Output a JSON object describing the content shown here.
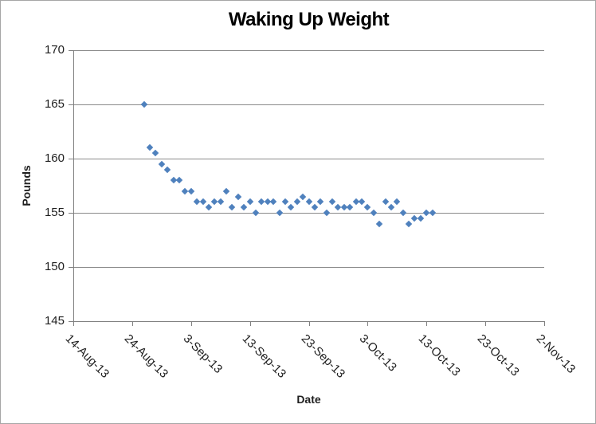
{
  "chart_data": {
    "type": "scatter",
    "title": "Waking Up Weight",
    "xlabel": "Date",
    "ylabel": "Pounds",
    "ylim": [
      145,
      170
    ],
    "y_ticks": [
      170,
      165,
      160,
      155,
      150,
      145
    ],
    "x_ticks": [
      {
        "label": "14-Aug-13",
        "day": 0
      },
      {
        "label": "24-Aug-13",
        "day": 10
      },
      {
        "label": "3-Sep-13",
        "day": 20
      },
      {
        "label": "13-Sep-13",
        "day": 30
      },
      {
        "label": "23-Sep-13",
        "day": 40
      },
      {
        "label": "3-Oct-13",
        "day": 50
      },
      {
        "label": "13-Oct-13",
        "day": 60
      },
      {
        "label": "23-Oct-13",
        "day": 70
      },
      {
        "label": "2-Nov-13",
        "day": 80
      }
    ],
    "x_day_range": [
      0,
      80
    ],
    "grid": "horizontal-only",
    "legend": "none",
    "marker": "diamond",
    "colors": {
      "marker": "#4F81BD",
      "gridline": "#8A8A8A",
      "axis": "#7F7F7F",
      "text": "#1F1F1F",
      "border": "#A6A6A6"
    },
    "points": [
      {
        "date": "26-Aug-13",
        "day": 12,
        "value": 165
      },
      {
        "date": "27-Aug-13",
        "day": 13,
        "value": 161
      },
      {
        "date": "28-Aug-13",
        "day": 14,
        "value": 160.5
      },
      {
        "date": "29-Aug-13",
        "day": 15,
        "value": 159.5
      },
      {
        "date": "30-Aug-13",
        "day": 16,
        "value": 159
      },
      {
        "date": "31-Aug-13",
        "day": 17,
        "value": 158
      },
      {
        "date": "1-Sep-13",
        "day": 18,
        "value": 158
      },
      {
        "date": "2-Sep-13",
        "day": 19,
        "value": 157
      },
      {
        "date": "3-Sep-13",
        "day": 20,
        "value": 157
      },
      {
        "date": "4-Sep-13",
        "day": 21,
        "value": 156
      },
      {
        "date": "5-Sep-13",
        "day": 22,
        "value": 156
      },
      {
        "date": "6-Sep-13",
        "day": 23,
        "value": 155.5
      },
      {
        "date": "7-Sep-13",
        "day": 24,
        "value": 156
      },
      {
        "date": "8-Sep-13",
        "day": 25,
        "value": 156
      },
      {
        "date": "9-Sep-13",
        "day": 26,
        "value": 157
      },
      {
        "date": "10-Sep-13",
        "day": 27,
        "value": 155.5
      },
      {
        "date": "11-Sep-13",
        "day": 28,
        "value": 156.5
      },
      {
        "date": "12-Sep-13",
        "day": 29,
        "value": 155.5
      },
      {
        "date": "13-Sep-13",
        "day": 30,
        "value": 156
      },
      {
        "date": "14-Sep-13",
        "day": 31,
        "value": 155
      },
      {
        "date": "15-Sep-13",
        "day": 32,
        "value": 156
      },
      {
        "date": "16-Sep-13",
        "day": 33,
        "value": 156
      },
      {
        "date": "17-Sep-13",
        "day": 34,
        "value": 156
      },
      {
        "date": "18-Sep-13",
        "day": 35,
        "value": 155
      },
      {
        "date": "19-Sep-13",
        "day": 36,
        "value": 156
      },
      {
        "date": "20-Sep-13",
        "day": 37,
        "value": 155.5
      },
      {
        "date": "21-Sep-13",
        "day": 38,
        "value": 156
      },
      {
        "date": "22-Sep-13",
        "day": 39,
        "value": 156.5
      },
      {
        "date": "23-Sep-13",
        "day": 40,
        "value": 156
      },
      {
        "date": "24-Sep-13",
        "day": 41,
        "value": 155.5
      },
      {
        "date": "25-Sep-13",
        "day": 42,
        "value": 156
      },
      {
        "date": "26-Sep-13",
        "day": 43,
        "value": 155
      },
      {
        "date": "27-Sep-13",
        "day": 44,
        "value": 156
      },
      {
        "date": "28-Sep-13",
        "day": 45,
        "value": 155.5
      },
      {
        "date": "29-Sep-13",
        "day": 46,
        "value": 155.5
      },
      {
        "date": "30-Sep-13",
        "day": 47,
        "value": 155.5
      },
      {
        "date": "1-Oct-13",
        "day": 48,
        "value": 156
      },
      {
        "date": "2-Oct-13",
        "day": 49,
        "value": 156
      },
      {
        "date": "3-Oct-13",
        "day": 50,
        "value": 155.5
      },
      {
        "date": "4-Oct-13",
        "day": 51,
        "value": 155
      },
      {
        "date": "5-Oct-13",
        "day": 52,
        "value": 154
      },
      {
        "date": "6-Oct-13",
        "day": 53,
        "value": 156
      },
      {
        "date": "7-Oct-13",
        "day": 54,
        "value": 155.5
      },
      {
        "date": "8-Oct-13",
        "day": 55,
        "value": 156
      },
      {
        "date": "9-Oct-13",
        "day": 56,
        "value": 155
      },
      {
        "date": "10-Oct-13",
        "day": 57,
        "value": 154
      },
      {
        "date": "11-Oct-13",
        "day": 58,
        "value": 154.5
      },
      {
        "date": "12-Oct-13",
        "day": 59,
        "value": 154.5
      },
      {
        "date": "13-Oct-13",
        "day": 60,
        "value": 155
      },
      {
        "date": "14-Oct-13",
        "day": 61,
        "value": 155
      }
    ]
  }
}
